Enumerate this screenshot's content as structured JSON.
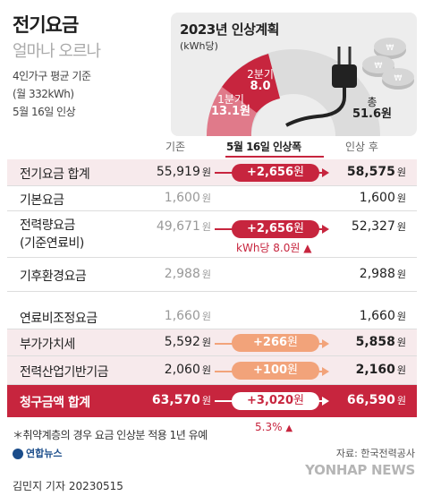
{
  "title": "전기요금",
  "subtitle": "얼마나 오르나",
  "info": [
    "4인가구 평균 기준",
    "(월 332kWh)",
    "5월 16일 인상"
  ],
  "chart": {
    "title": "2023년 인상계획",
    "unit": "(kWh당)",
    "segments": [
      {
        "label": "1분기",
        "value": "13.1원",
        "num": 13.1,
        "color": "#e07a8a"
      },
      {
        "label": "2분기",
        "value": "8.0",
        "num": 8.0,
        "color": "#c7253e"
      },
      {
        "label": "총",
        "value": "51.6원",
        "num": 51.6,
        "color": "#dcdcdc"
      }
    ]
  },
  "header": {
    "before": "기존",
    "change": "5월 16일 인상폭",
    "after": "인상 후"
  },
  "rows": [
    {
      "label": "전기요금 합계",
      "before": "55,919",
      "change": "+2,656",
      "after": "58,575"
    },
    {
      "label": "기본요금",
      "before": "1,600",
      "after": "1,600"
    },
    {
      "label1": "전력량요금",
      "label2": "(기준연료비)",
      "before": "49,671",
      "change": "+2,656",
      "after": "52,327",
      "sub": "kWh당 8.0원 ▲"
    },
    {
      "label": "기후환경요금",
      "before": "2,988",
      "after": "2,988"
    },
    {
      "label": "연료비조정요금",
      "before": "1,660",
      "after": "1,660"
    },
    {
      "label": "부가가치세",
      "before": "5,592",
      "change": "+266",
      "after": "5,858"
    },
    {
      "label": "전력산업기반기금",
      "before": "2,060",
      "change": "+100",
      "after": "2,160"
    },
    {
      "label": "청구금액 합계",
      "before": "63,570",
      "change": "+3,020",
      "after": "66,590"
    }
  ],
  "won": "원",
  "pct": "5.3%",
  "note": "＊취약계층의 경우 요금 인상분 적용 1년 유예",
  "source": "자료: 한국전력공사",
  "logo": "연합뉴스",
  "byline": "김민지 기자  20230515",
  "watermark": "YONHAP NEWS",
  "colors": {
    "accent": "#c7253e",
    "accent_light": "#f2a37a",
    "band": "#f7eaec"
  }
}
